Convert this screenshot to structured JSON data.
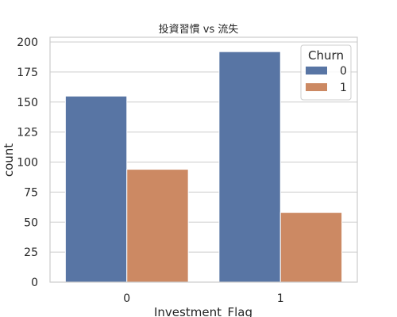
{
  "chart_data": {
    "type": "bar",
    "title": "投資習慣 vs 流失",
    "xlabel": "Investment_Flag",
    "ylabel": "count",
    "categories": [
      "0",
      "1"
    ],
    "series": [
      {
        "name": "0",
        "values": [
          155,
          192
        ],
        "color": "#5875a4"
      },
      {
        "name": "1",
        "values": [
          94,
          58
        ],
        "color": "#cc8963"
      }
    ],
    "ylim": [
      0,
      204
    ],
    "yticks": [
      0,
      25,
      50,
      75,
      100,
      125,
      150,
      175,
      200
    ],
    "grid": "horizontal",
    "legend": {
      "title": "Churn",
      "placement": "top-right"
    }
  }
}
